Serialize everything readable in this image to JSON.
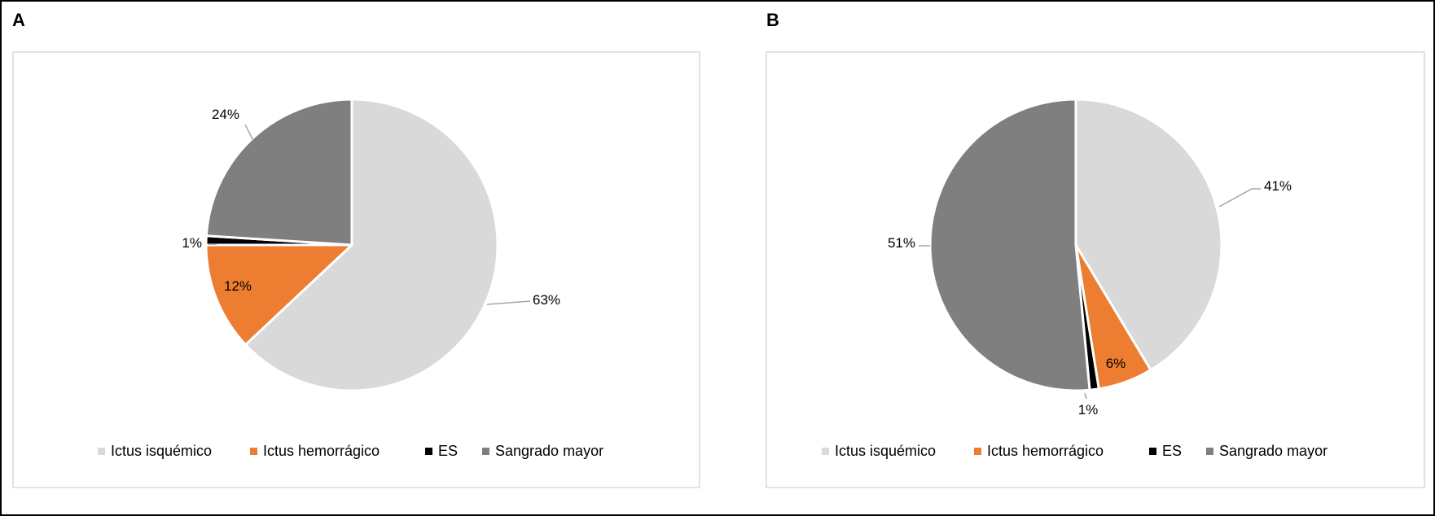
{
  "chart_data": [
    {
      "panel": "A",
      "type": "pie",
      "categories": [
        "Ictus isquémico",
        "Ictus hemorrágico",
        "ES",
        "Sangrado mayor"
      ],
      "values": [
        63,
        12,
        1,
        24
      ],
      "labels": [
        "63%",
        "12%",
        "1%",
        "24%"
      ],
      "colors": [
        "#d9d9d9",
        "#ed7d31",
        "#000000",
        "#7f7f7f"
      ],
      "legend": "bottom"
    },
    {
      "panel": "B",
      "type": "pie",
      "categories": [
        "Ictus isquémico",
        "Ictus hemorrágico",
        "ES",
        "Sangrado mayor"
      ],
      "values": [
        41,
        6,
        1,
        51
      ],
      "labels": [
        "41%",
        "6%",
        "1%",
        "51%"
      ],
      "colors": [
        "#d9d9d9",
        "#ed7d31",
        "#000000",
        "#7f7f7f"
      ],
      "legend": "bottom"
    }
  ]
}
